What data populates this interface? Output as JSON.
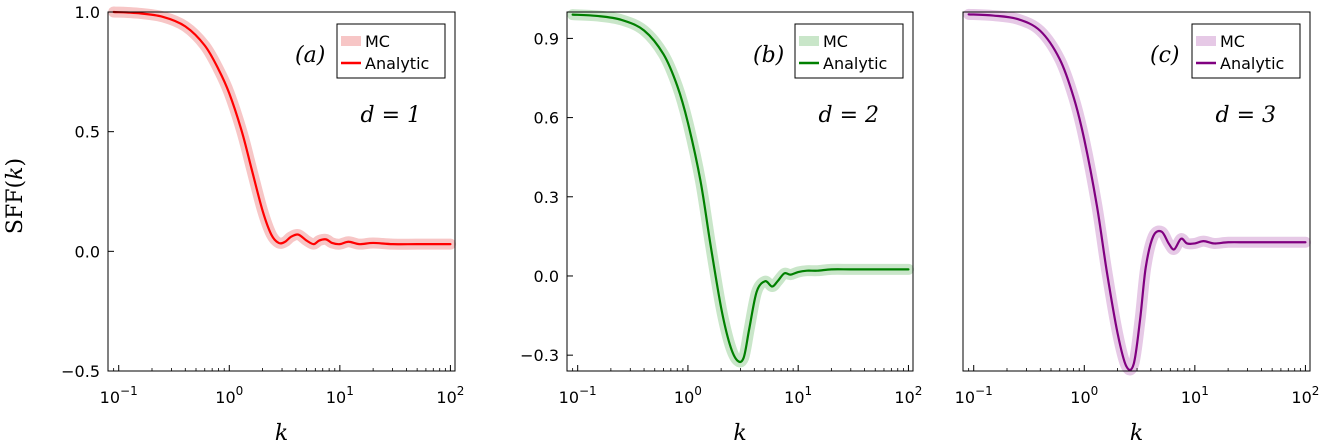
{
  "figure": {
    "ylabel_prefix": "SFF(",
    "ylabel_var": "k",
    "ylabel_suffix": ")"
  },
  "chart_data": [
    {
      "type": "line",
      "panel_label": "(a)",
      "dimension_label": "d = 1",
      "xlabel": "k",
      "xscale": "log",
      "xlim": [
        0.08,
        110
      ],
      "ylim": [
        -0.5,
        1.0
      ],
      "yticks": [
        -0.5,
        0.0,
        0.5,
        1.0
      ],
      "ytick_labels": [
        "−0.5",
        "0.0",
        "0.5",
        "1.0"
      ],
      "xticks": [
        0.1,
        1,
        10,
        100
      ],
      "xtick_bases": [
        "10",
        "10",
        "10",
        "10"
      ],
      "xtick_exps": [
        "−1",
        "0",
        "1",
        "2"
      ],
      "color": "#ff0000",
      "mc_color": "#f7c6c6",
      "legend": [
        "MC",
        "Analytic"
      ],
      "legend_position": "top-right",
      "series": [
        {
          "name": "MC",
          "x": [
            0.09,
            0.15,
            0.25,
            0.4,
            0.6,
            0.8,
            1.0,
            1.3,
            1.6,
            2.0,
            2.4,
            2.8,
            3.2,
            3.6,
            4.2,
            5.0,
            5.8,
            6.5,
            7.5,
            8.5,
            10,
            12,
            15,
            20,
            30,
            50,
            100
          ],
          "y": [
            1.0,
            0.995,
            0.98,
            0.94,
            0.86,
            0.76,
            0.66,
            0.5,
            0.34,
            0.17,
            0.07,
            0.035,
            0.04,
            0.06,
            0.07,
            0.045,
            0.03,
            0.045,
            0.05,
            0.035,
            0.03,
            0.04,
            0.03,
            0.035,
            0.03,
            0.03,
            0.03
          ]
        },
        {
          "name": "Analytic",
          "x": [
            0.09,
            0.15,
            0.25,
            0.4,
            0.6,
            0.8,
            1.0,
            1.3,
            1.6,
            2.0,
            2.4,
            2.8,
            3.2,
            3.6,
            4.2,
            5.0,
            5.8,
            6.5,
            7.5,
            8.5,
            10,
            12,
            15,
            20,
            30,
            50,
            100
          ],
          "y": [
            1.0,
            0.995,
            0.98,
            0.94,
            0.86,
            0.76,
            0.66,
            0.5,
            0.34,
            0.17,
            0.07,
            0.035,
            0.04,
            0.06,
            0.07,
            0.045,
            0.03,
            0.045,
            0.05,
            0.035,
            0.03,
            0.04,
            0.03,
            0.035,
            0.03,
            0.03,
            0.03
          ]
        }
      ]
    },
    {
      "type": "line",
      "panel_label": "(b)",
      "dimension_label": "d = 2",
      "xlabel": "k",
      "xscale": "log",
      "xlim": [
        0.08,
        110
      ],
      "ylim": [
        -0.36,
        1.0
      ],
      "yticks": [
        -0.3,
        0.0,
        0.3,
        0.6,
        0.9
      ],
      "ytick_labels": [
        "−0.3",
        "0.0",
        "0.3",
        "0.6",
        "0.9"
      ],
      "xticks": [
        0.1,
        1,
        10,
        100
      ],
      "xtick_bases": [
        "10",
        "10",
        "10",
        "10"
      ],
      "xtick_exps": [
        "−1",
        "0",
        "1",
        "2"
      ],
      "color": "#008000",
      "mc_color": "#c9e6c9",
      "legend": [
        "MC",
        "Analytic"
      ],
      "legend_position": "top-right",
      "series": [
        {
          "name": "MC",
          "x": [
            0.09,
            0.15,
            0.25,
            0.4,
            0.6,
            0.8,
            1.0,
            1.3,
            1.6,
            2.0,
            2.4,
            2.8,
            3.2,
            3.6,
            4.2,
            5.0,
            5.8,
            6.5,
            7.5,
            8.5,
            10,
            12,
            15,
            20,
            30,
            50,
            100
          ],
          "y": [
            0.99,
            0.985,
            0.97,
            0.93,
            0.84,
            0.72,
            0.58,
            0.36,
            0.12,
            -0.12,
            -0.26,
            -0.32,
            -0.31,
            -0.2,
            -0.06,
            -0.02,
            -0.04,
            -0.02,
            0.01,
            0.005,
            0.015,
            0.02,
            0.02,
            0.025,
            0.025,
            0.025,
            0.025
          ]
        },
        {
          "name": "Analytic",
          "x": [
            0.09,
            0.15,
            0.25,
            0.4,
            0.6,
            0.8,
            1.0,
            1.3,
            1.6,
            2.0,
            2.4,
            2.8,
            3.2,
            3.6,
            4.2,
            5.0,
            5.8,
            6.5,
            7.5,
            8.5,
            10,
            12,
            15,
            20,
            30,
            50,
            100
          ],
          "y": [
            0.99,
            0.985,
            0.97,
            0.93,
            0.84,
            0.72,
            0.58,
            0.36,
            0.12,
            -0.12,
            -0.26,
            -0.32,
            -0.31,
            -0.2,
            -0.06,
            -0.02,
            -0.04,
            -0.02,
            0.01,
            0.005,
            0.015,
            0.02,
            0.02,
            0.025,
            0.025,
            0.025,
            0.025
          ]
        }
      ]
    },
    {
      "type": "line",
      "panel_label": "(c)",
      "dimension_label": "d = 3",
      "xlabel": "k",
      "xscale": "log",
      "xlim": [
        0.08,
        110
      ],
      "ylim": [
        -0.52,
        1.0
      ],
      "yticks": [],
      "ytick_labels": [],
      "xticks": [
        0.1,
        1,
        10,
        100
      ],
      "xtick_bases": [
        "10",
        "10",
        "10",
        "10"
      ],
      "xtick_exps": [
        "−1",
        "0",
        "1",
        "2"
      ],
      "color": "#800080",
      "mc_color": "#e6c9e6",
      "legend": [
        "MC",
        "Analytic"
      ],
      "legend_position": "top-right",
      "series": [
        {
          "name": "MC",
          "x": [
            0.09,
            0.15,
            0.25,
            0.4,
            0.6,
            0.8,
            1.0,
            1.3,
            1.6,
            2.0,
            2.4,
            2.8,
            3.2,
            3.6,
            4.2,
            5.0,
            5.8,
            6.5,
            7.5,
            8.5,
            10,
            12,
            15,
            20,
            30,
            50,
            100
          ],
          "y": [
            0.99,
            0.985,
            0.97,
            0.92,
            0.8,
            0.64,
            0.46,
            0.18,
            -0.1,
            -0.36,
            -0.5,
            -0.49,
            -0.3,
            -0.08,
            0.05,
            0.07,
            0.02,
            -0.005,
            0.04,
            0.02,
            0.02,
            0.03,
            0.02,
            0.025,
            0.025,
            0.025,
            0.025
          ]
        },
        {
          "name": "Analytic",
          "x": [
            0.09,
            0.15,
            0.25,
            0.4,
            0.6,
            0.8,
            1.0,
            1.3,
            1.6,
            2.0,
            2.4,
            2.8,
            3.2,
            3.6,
            4.2,
            5.0,
            5.8,
            6.5,
            7.5,
            8.5,
            10,
            12,
            15,
            20,
            30,
            50,
            100
          ],
          "y": [
            0.99,
            0.985,
            0.97,
            0.92,
            0.8,
            0.64,
            0.46,
            0.18,
            -0.1,
            -0.36,
            -0.5,
            -0.49,
            -0.3,
            -0.08,
            0.05,
            0.07,
            0.02,
            -0.005,
            0.04,
            0.02,
            0.02,
            0.03,
            0.02,
            0.025,
            0.025,
            0.025,
            0.025
          ]
        }
      ]
    }
  ]
}
